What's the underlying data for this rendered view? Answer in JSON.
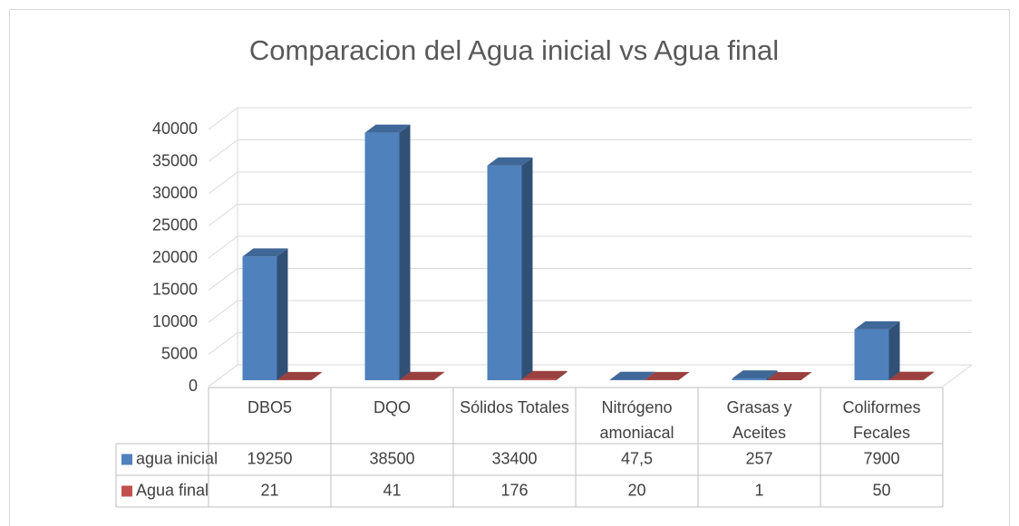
{
  "chart_data": {
    "type": "bar3d",
    "title": "Comparacion del Agua inicial vs Agua final",
    "categories": [
      "DBO5",
      "DQO",
      "Sólidos Totales",
      "Nitrógeno amoniacal",
      "Grasas y Aceites",
      "Coliformes Fecales"
    ],
    "series": [
      {
        "name": "agua inicial",
        "color": "#4f81bd",
        "values": [
          19250,
          38500,
          33400,
          47.5,
          257,
          7900
        ],
        "value_labels": [
          "19250",
          "38500",
          "33400",
          "47,5",
          "257",
          "7900"
        ]
      },
      {
        "name": "Agua final",
        "color": "#c0504d",
        "values": [
          21,
          41,
          176,
          20,
          1,
          50
        ]
      }
    ],
    "ylim": [
      0,
      40000
    ],
    "yticks": [
      0,
      5000,
      10000,
      15000,
      20000,
      25000,
      30000,
      35000,
      40000
    ],
    "grid": true
  }
}
